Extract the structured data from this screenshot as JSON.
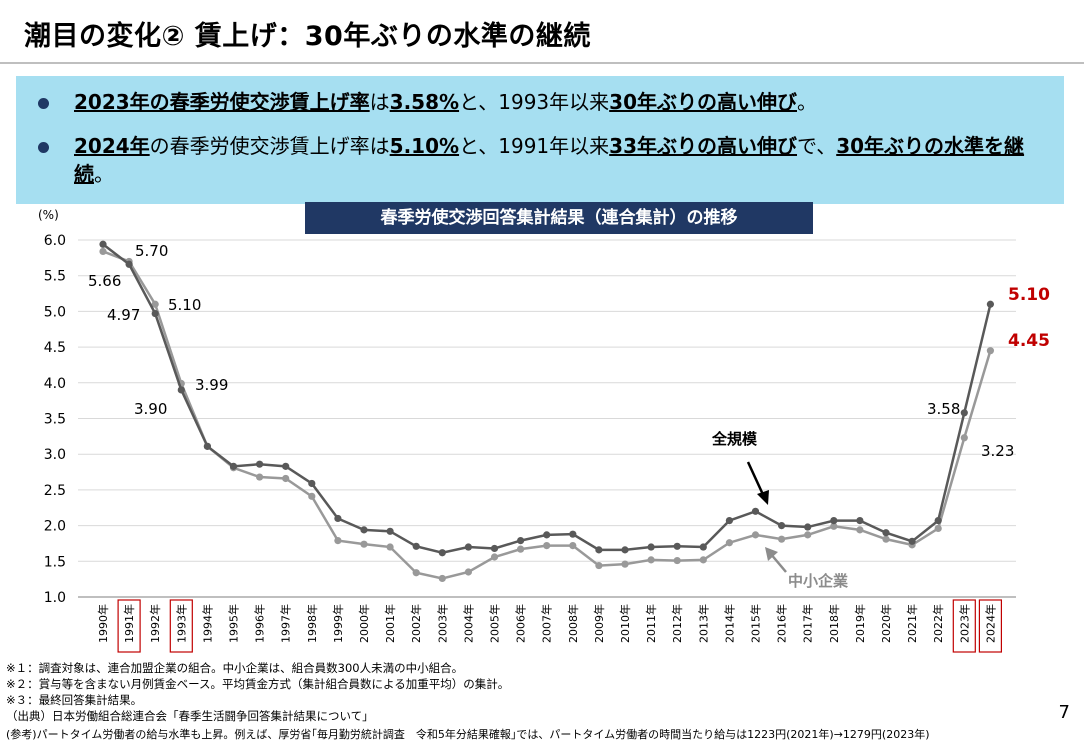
{
  "header": {
    "title": "潮目の変化② 賃上げ：30年ぶりの水準の継続"
  },
  "highlights": [
    {
      "p1": "2023年の春季労使交渉賃上げ率",
      "p2": "は",
      "p3": "3.58%",
      "p4": "と、1993年以来",
      "p5": "30年ぶりの高い伸び",
      "p6": "。"
    },
    {
      "p1": "2024年",
      "p2": "の春季労使交渉賃上げ率は",
      "p3": "5.10%",
      "p4": "と、1991年以来",
      "p5": "33年ぶりの高い伸び",
      "p6": "で、",
      "p7": "30年ぶりの水準を継続",
      "p8": "。"
    }
  ],
  "chart_data": {
    "type": "line",
    "title": "春季労使交渉回答集計結果（連合集計）の推移",
    "ylabel": "(%)",
    "ylim": [
      1.0,
      6.0
    ],
    "yticks": [
      "1.0",
      "1.5",
      "2.0",
      "2.5",
      "3.0",
      "3.5",
      "4.0",
      "4.5",
      "5.0",
      "5.5",
      "6.0"
    ],
    "grid": true,
    "categories": [
      "1990年",
      "1991年",
      "1992年",
      "1993年",
      "1994年",
      "1995年",
      "1996年",
      "1997年",
      "1998年",
      "1999年",
      "2000年",
      "2001年",
      "2002年",
      "2003年",
      "2004年",
      "2005年",
      "2006年",
      "2007年",
      "2008年",
      "2009年",
      "2010年",
      "2011年",
      "2012年",
      "2013年",
      "2014年",
      "2015年",
      "2016年",
      "2017年",
      "2018年",
      "2019年",
      "2020年",
      "2021年",
      "2022年",
      "2023年",
      "2024年"
    ],
    "highlighted_categories": [
      "1991年",
      "1993年",
      "2023年",
      "2024年"
    ],
    "series": [
      {
        "name": "全規模",
        "color": "#595959",
        "values": [
          5.94,
          5.66,
          4.97,
          3.9,
          3.11,
          2.83,
          2.86,
          2.83,
          2.59,
          2.1,
          1.94,
          1.92,
          1.71,
          1.62,
          1.7,
          1.68,
          1.79,
          1.87,
          1.88,
          1.66,
          1.66,
          1.7,
          1.71,
          1.7,
          2.07,
          2.2,
          2.0,
          1.98,
          2.07,
          2.07,
          1.9,
          1.78,
          2.07,
          3.58,
          5.1
        ]
      },
      {
        "name": "中小企業",
        "color": "#999999",
        "values": [
          5.84,
          5.7,
          5.1,
          3.99,
          3.11,
          2.81,
          2.68,
          2.66,
          2.41,
          1.79,
          1.74,
          1.7,
          1.34,
          1.26,
          1.35,
          1.56,
          1.67,
          1.72,
          1.72,
          1.44,
          1.46,
          1.52,
          1.51,
          1.52,
          1.76,
          1.87,
          1.81,
          1.87,
          1.99,
          1.94,
          1.81,
          1.73,
          1.96,
          3.23,
          4.45
        ]
      }
    ],
    "data_labels": [
      {
        "text": "5.70"
      },
      {
        "text": "5.66"
      },
      {
        "text": "5.10"
      },
      {
        "text": "4.97"
      },
      {
        "text": "3.99"
      },
      {
        "text": "3.90"
      },
      {
        "text": "3.58"
      },
      {
        "text": "3.23"
      },
      {
        "text": "5.10",
        "color": "#c00000"
      },
      {
        "text": "4.45",
        "color": "#c00000"
      }
    ],
    "annotations": [
      {
        "text": "全規模"
      },
      {
        "text": "中小企業"
      }
    ]
  },
  "footnotes": [
    "※１：調査対象は、連合加盟企業の組合。中小企業は、組合員数300人未満の中小組合。",
    "※２：賞与等を含まない月例賃金ベース。平均賃金方式（集計組合員数による加重平均）の集計。",
    "※３：最終回答集計結果。",
    "（出典）日本労働組合総連合会「春季生活闘争回答集計結果について」",
    "(参考)パートタイム労働者の給与水準も上昇。例えば、厚労省｢毎月勤労統計調査　令和5年分結果確報｣では、パートタイム労働者の時間当たり給与は1223円(2021年)→1279円(2023年)"
  ],
  "page_number": "7"
}
